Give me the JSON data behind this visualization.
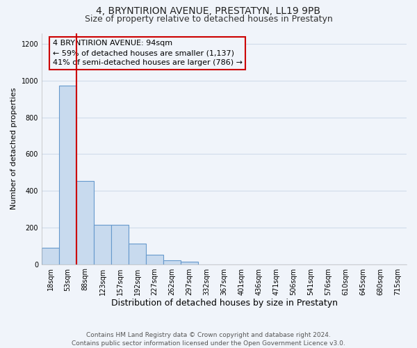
{
  "title": "4, BRYNTIRION AVENUE, PRESTATYN, LL19 9PB",
  "subtitle": "Size of property relative to detached houses in Prestatyn",
  "xlabel": "Distribution of detached houses by size in Prestatyn",
  "ylabel": "Number of detached properties",
  "bar_labels": [
    "18sqm",
    "53sqm",
    "88sqm",
    "123sqm",
    "157sqm",
    "192sqm",
    "227sqm",
    "262sqm",
    "297sqm",
    "332sqm",
    "367sqm",
    "401sqm",
    "436sqm",
    "471sqm",
    "506sqm",
    "541sqm",
    "576sqm",
    "610sqm",
    "645sqm",
    "680sqm",
    "715sqm"
  ],
  "bar_values": [
    88,
    975,
    452,
    215,
    215,
    113,
    50,
    20,
    15,
    0,
    0,
    0,
    0,
    0,
    0,
    0,
    0,
    0,
    0,
    0,
    0
  ],
  "bar_color": "#c8daee",
  "bar_edge_color": "#6699cc",
  "vline_x_bar_index": 1,
  "vline_color": "#cc0000",
  "box_edge_color": "#cc0000",
  "annotation_line1": "4 BRYNTIRION AVENUE: 94sqm",
  "annotation_line2": "← 59% of detached houses are smaller (1,137)",
  "annotation_line3": "41% of semi-detached houses are larger (786) →",
  "ylim": [
    0,
    1260
  ],
  "yticks": [
    0,
    200,
    400,
    600,
    800,
    1000,
    1200
  ],
  "footer_line1": "Contains HM Land Registry data © Crown copyright and database right 2024.",
  "footer_line2": "Contains public sector information licensed under the Open Government Licence v3.0.",
  "bg_color": "#f0f4fa",
  "grid_color": "#d0dcea",
  "title_fontsize": 10,
  "subtitle_fontsize": 9,
  "ylabel_fontsize": 8,
  "xlabel_fontsize": 9,
  "tick_fontsize": 7,
  "anno_fontsize": 8,
  "footer_fontsize": 6.5
}
